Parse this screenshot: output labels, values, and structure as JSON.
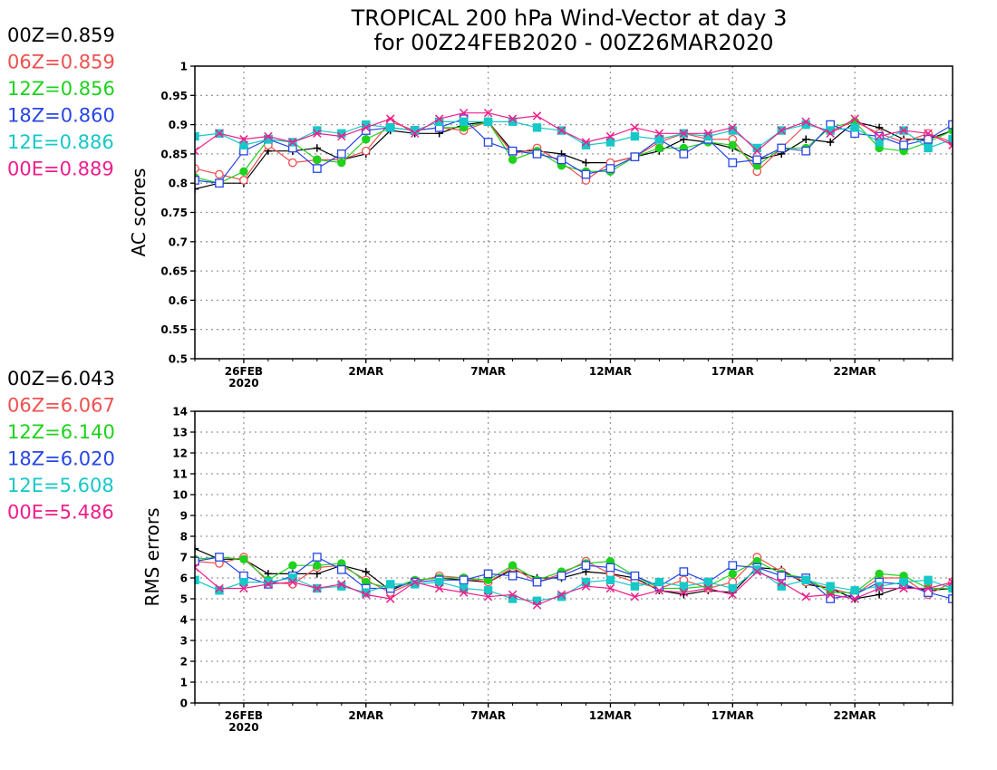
{
  "title": {
    "line1": "TROPICAL 200 hPa Wind-Vector at day 3",
    "line2": "for 00Z24FEB2020 - 00Z26MAR2020"
  },
  "series_styles": [
    {
      "name": "00Z",
      "color": "#000000",
      "marker": "plus"
    },
    {
      "name": "06Z",
      "color": "#f05050",
      "marker": "circle-open"
    },
    {
      "name": "12Z",
      "color": "#1ed21e",
      "marker": "circle-filled"
    },
    {
      "name": "18Z",
      "color": "#2846e6",
      "marker": "square-open"
    },
    {
      "name": "12E",
      "color": "#16c8c8",
      "marker": "square-filled"
    },
    {
      "name": "00E",
      "color": "#f01e8c",
      "marker": "cross"
    }
  ],
  "chart_data": [
    {
      "type": "line",
      "ylabel": "AC scores",
      "ylim": [
        0.5,
        1
      ],
      "y_ticks": [
        "0.5",
        "0.55",
        "0.6",
        "0.65",
        "0.7",
        "0.75",
        "0.8",
        "0.85",
        "0.9",
        "0.95",
        "1"
      ],
      "x_ticks": [
        {
          "day": 2,
          "label": "26FEB",
          "sublabel": "2020"
        },
        {
          "day": 7,
          "label": "2MAR",
          "sublabel": ""
        },
        {
          "day": 12,
          "label": "7MAR",
          "sublabel": ""
        },
        {
          "day": 17,
          "label": "12MAR",
          "sublabel": ""
        },
        {
          "day": 22,
          "label": "17MAR",
          "sublabel": ""
        },
        {
          "day": 27,
          "label": "22MAR",
          "sublabel": ""
        }
      ],
      "x_range": [
        0,
        31
      ],
      "grid": true,
      "stats": [
        {
          "name": "00Z",
          "text": "00Z=0.859"
        },
        {
          "name": "06Z",
          "text": "06Z=0.859"
        },
        {
          "name": "12Z",
          "text": "12Z=0.856"
        },
        {
          "name": "18Z",
          "text": "18Z=0.860"
        },
        {
          "name": "12E",
          "text": "12E=0.886"
        },
        {
          "name": "00E",
          "text": "00E=0.889"
        }
      ],
      "series": [
        {
          "name": "00Z",
          "x": [
            0,
            1,
            2,
            3,
            4,
            5,
            6,
            7,
            8,
            9,
            10,
            11,
            12,
            13,
            14,
            15,
            16,
            17,
            18,
            19,
            20,
            21,
            22,
            23,
            24,
            25,
            26,
            27,
            28,
            29,
            30,
            31
          ],
          "values": [
            0.79,
            0.8,
            0.8,
            0.855,
            0.855,
            0.86,
            0.84,
            0.85,
            0.89,
            0.885,
            0.885,
            0.9,
            0.905,
            0.855,
            0.855,
            0.85,
            0.835,
            0.835,
            0.845,
            0.855,
            0.875,
            0.87,
            0.86,
            0.84,
            0.85,
            0.875,
            0.87,
            0.905,
            0.895,
            0.875,
            0.875,
            0.89
          ]
        },
        {
          "name": "06Z",
          "x": [
            0,
            1,
            2,
            3,
            4,
            5,
            6,
            7,
            8,
            9,
            10,
            11,
            12,
            13,
            14,
            15,
            16,
            17,
            18,
            19,
            20,
            21,
            22,
            23,
            24,
            25,
            26,
            27,
            28,
            29,
            30,
            31
          ],
          "values": [
            0.825,
            0.815,
            0.805,
            0.865,
            0.835,
            0.84,
            0.84,
            0.855,
            0.905,
            0.89,
            0.895,
            0.89,
            0.905,
            0.85,
            0.86,
            0.835,
            0.805,
            0.835,
            0.845,
            0.87,
            0.885,
            0.875,
            0.875,
            0.82,
            0.86,
            0.9,
            0.89,
            0.905,
            0.885,
            0.87,
            0.885,
            0.87
          ]
        },
        {
          "name": "12Z",
          "x": [
            0,
            1,
            2,
            3,
            4,
            5,
            6,
            7,
            8,
            9,
            10,
            11,
            12,
            13,
            14,
            15,
            16,
            17,
            18,
            19,
            20,
            21,
            22,
            23,
            24,
            25,
            26,
            27,
            28,
            29,
            30,
            31
          ],
          "values": [
            0.81,
            0.8,
            0.82,
            0.875,
            0.87,
            0.84,
            0.835,
            0.875,
            0.895,
            0.89,
            0.895,
            0.895,
            0.905,
            0.84,
            0.855,
            0.83,
            0.82,
            0.82,
            0.845,
            0.86,
            0.86,
            0.87,
            0.865,
            0.83,
            0.86,
            0.86,
            0.895,
            0.905,
            0.86,
            0.855,
            0.87,
            0.89
          ]
        },
        {
          "name": "18Z",
          "x": [
            0,
            1,
            2,
            3,
            4,
            5,
            6,
            7,
            8,
            9,
            10,
            11,
            12,
            13,
            14,
            15,
            16,
            17,
            18,
            19,
            20,
            21,
            22,
            23,
            24,
            25,
            26,
            27,
            28,
            29,
            30,
            31
          ],
          "values": [
            0.805,
            0.8,
            0.855,
            0.875,
            0.86,
            0.825,
            0.85,
            0.89,
            0.895,
            0.89,
            0.895,
            0.91,
            0.87,
            0.855,
            0.85,
            0.84,
            0.815,
            0.825,
            0.845,
            0.875,
            0.85,
            0.875,
            0.835,
            0.84,
            0.86,
            0.855,
            0.9,
            0.885,
            0.88,
            0.865,
            0.875,
            0.9
          ]
        },
        {
          "name": "12E",
          "x": [
            0,
            1,
            2,
            3,
            4,
            5,
            6,
            7,
            8,
            9,
            10,
            11,
            12,
            13,
            14,
            15,
            16,
            17,
            18,
            19,
            20,
            21,
            22,
            23,
            24,
            25,
            26,
            27,
            28,
            29,
            30,
            31
          ],
          "values": [
            0.88,
            0.885,
            0.865,
            0.875,
            0.87,
            0.89,
            0.885,
            0.9,
            0.895,
            0.89,
            0.905,
            0.905,
            0.905,
            0.905,
            0.895,
            0.89,
            0.865,
            0.87,
            0.88,
            0.875,
            0.885,
            0.88,
            0.89,
            0.86,
            0.89,
            0.9,
            0.89,
            0.895,
            0.87,
            0.89,
            0.86,
            0.875
          ]
        },
        {
          "name": "00E",
          "x": [
            0,
            1,
            2,
            3,
            4,
            5,
            6,
            7,
            8,
            9,
            10,
            11,
            12,
            13,
            14,
            15,
            16,
            17,
            18,
            19,
            20,
            21,
            22,
            23,
            24,
            25,
            26,
            27,
            28,
            29,
            30,
            31
          ],
          "values": [
            0.855,
            0.885,
            0.875,
            0.88,
            0.87,
            0.885,
            0.88,
            0.895,
            0.91,
            0.885,
            0.91,
            0.92,
            0.92,
            0.91,
            0.915,
            0.89,
            0.87,
            0.88,
            0.895,
            0.885,
            0.885,
            0.885,
            0.895,
            0.855,
            0.89,
            0.905,
            0.885,
            0.91,
            0.88,
            0.89,
            0.885,
            0.865
          ]
        }
      ]
    },
    {
      "type": "line",
      "ylabel": "RMS errors",
      "ylim": [
        0,
        14
      ],
      "y_ticks": [
        "0",
        "1",
        "2",
        "3",
        "4",
        "5",
        "6",
        "7",
        "8",
        "9",
        "10",
        "11",
        "12",
        "13",
        "14"
      ],
      "x_ticks": [
        {
          "day": 2,
          "label": "26FEB",
          "sublabel": "2020"
        },
        {
          "day": 7,
          "label": "2MAR",
          "sublabel": ""
        },
        {
          "day": 12,
          "label": "7MAR",
          "sublabel": ""
        },
        {
          "day": 17,
          "label": "12MAR",
          "sublabel": ""
        },
        {
          "day": 22,
          "label": "17MAR",
          "sublabel": ""
        },
        {
          "day": 27,
          "label": "22MAR",
          "sublabel": ""
        }
      ],
      "x_range": [
        0,
        31
      ],
      "grid": true,
      "stats": [
        {
          "name": "00Z",
          "text": "00Z=6.043"
        },
        {
          "name": "06Z",
          "text": "06Z=6.067"
        },
        {
          "name": "12Z",
          "text": "12Z=6.140"
        },
        {
          "name": "18Z",
          "text": "18Z=6.020"
        },
        {
          "name": "12E",
          "text": "12E=5.608"
        },
        {
          "name": "00E",
          "text": "00E=5.486"
        }
      ],
      "series": [
        {
          "name": "00Z",
          "x": [
            0,
            1,
            2,
            3,
            4,
            5,
            6,
            7,
            8,
            9,
            10,
            11,
            12,
            13,
            14,
            15,
            16,
            17,
            18,
            19,
            20,
            21,
            22,
            23,
            24,
            25,
            26,
            27,
            28,
            29,
            30,
            31
          ],
          "values": [
            7.4,
            6.9,
            6.9,
            6.2,
            6.2,
            6.2,
            6.6,
            6.3,
            5.4,
            5.9,
            6.0,
            5.9,
            5.8,
            6.4,
            6.0,
            6.0,
            6.3,
            6.2,
            6.0,
            5.4,
            5.2,
            5.4,
            5.3,
            6.5,
            6.4,
            5.7,
            5.5,
            5.0,
            5.2,
            5.6,
            5.4,
            5.5
          ]
        },
        {
          "name": "06Z",
          "x": [
            0,
            1,
            2,
            3,
            4,
            5,
            6,
            7,
            8,
            9,
            10,
            11,
            12,
            13,
            14,
            15,
            16,
            17,
            18,
            19,
            20,
            21,
            22,
            23,
            24,
            25,
            26,
            27,
            28,
            29,
            30,
            31
          ],
          "values": [
            6.8,
            6.7,
            7.0,
            5.8,
            5.7,
            6.5,
            6.6,
            5.9,
            5.3,
            5.8,
            6.1,
            6.0,
            5.8,
            6.5,
            5.8,
            6.2,
            6.8,
            6.2,
            5.8,
            5.5,
            5.9,
            5.5,
            5.8,
            7.0,
            6.3,
            5.8,
            5.5,
            5.2,
            6.0,
            6.0,
            5.2,
            5.8
          ]
        },
        {
          "name": "12Z",
          "x": [
            0,
            1,
            2,
            3,
            4,
            5,
            6,
            7,
            8,
            9,
            10,
            11,
            12,
            13,
            14,
            15,
            16,
            17,
            18,
            19,
            20,
            21,
            22,
            23,
            24,
            25,
            26,
            27,
            28,
            29,
            30,
            31
          ],
          "values": [
            6.9,
            7.0,
            6.9,
            5.9,
            6.6,
            6.6,
            6.7,
            5.8,
            5.5,
            5.9,
            6.0,
            6.0,
            5.9,
            6.6,
            5.9,
            6.3,
            6.7,
            6.8,
            6.1,
            5.5,
            5.5,
            5.6,
            6.2,
            6.8,
            6.2,
            6.0,
            5.3,
            5.3,
            6.2,
            6.1,
            5.5,
            5.5
          ]
        },
        {
          "name": "18Z",
          "x": [
            0,
            1,
            2,
            3,
            4,
            5,
            6,
            7,
            8,
            9,
            10,
            11,
            12,
            13,
            14,
            15,
            16,
            17,
            18,
            19,
            20,
            21,
            22,
            23,
            24,
            25,
            26,
            27,
            28,
            29,
            30,
            31
          ],
          "values": [
            6.8,
            7.0,
            6.1,
            5.7,
            6.1,
            7.0,
            6.4,
            5.5,
            5.5,
            5.8,
            5.9,
            5.9,
            6.2,
            6.1,
            5.8,
            6.1,
            6.6,
            6.5,
            6.1,
            5.6,
            6.3,
            5.8,
            6.6,
            6.5,
            6.1,
            6.0,
            5.0,
            5.2,
            5.8,
            5.7,
            5.3,
            5.0
          ]
        },
        {
          "name": "12E",
          "x": [
            0,
            1,
            2,
            3,
            4,
            5,
            6,
            7,
            8,
            9,
            10,
            11,
            12,
            13,
            14,
            15,
            16,
            17,
            18,
            19,
            20,
            21,
            22,
            23,
            24,
            25,
            26,
            27,
            28,
            29,
            30,
            31
          ],
          "values": [
            5.9,
            5.4,
            5.8,
            5.8,
            6.0,
            5.5,
            5.6,
            5.3,
            5.7,
            5.7,
            5.8,
            5.5,
            5.4,
            5.0,
            4.9,
            5.1,
            5.8,
            5.9,
            5.6,
            5.8,
            5.6,
            5.8,
            5.5,
            6.4,
            5.6,
            5.9,
            5.6,
            5.4,
            5.6,
            5.8,
            5.9,
            5.5
          ]
        },
        {
          "name": "00E",
          "x": [
            0,
            1,
            2,
            3,
            4,
            5,
            6,
            7,
            8,
            9,
            10,
            11,
            12,
            13,
            14,
            15,
            16,
            17,
            18,
            19,
            20,
            21,
            22,
            23,
            24,
            25,
            26,
            27,
            28,
            29,
            30,
            31
          ],
          "values": [
            6.5,
            5.5,
            5.5,
            5.7,
            5.8,
            5.5,
            5.7,
            5.2,
            5.0,
            5.8,
            5.5,
            5.3,
            5.1,
            5.2,
            4.7,
            5.2,
            5.6,
            5.5,
            5.1,
            5.4,
            5.3,
            5.5,
            5.2,
            6.3,
            5.8,
            5.1,
            5.2,
            5.0,
            5.5,
            5.5,
            5.5,
            5.8
          ]
        }
      ]
    }
  ]
}
